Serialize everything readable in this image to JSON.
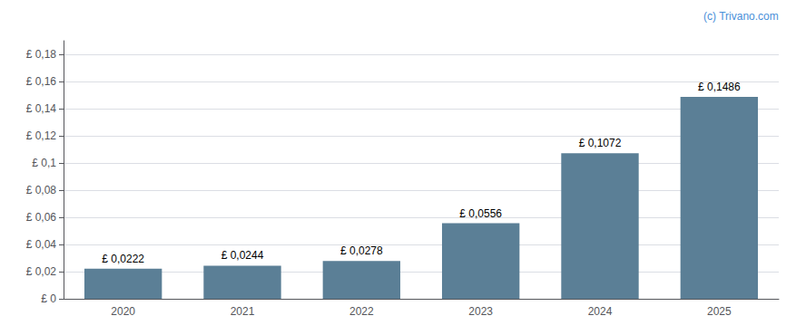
{
  "chart_data": {
    "type": "bar",
    "categories": [
      "2020",
      "2021",
      "2022",
      "2023",
      "2024",
      "2025"
    ],
    "values": [
      0.0222,
      0.0244,
      0.0278,
      0.0556,
      0.1072,
      0.1486
    ],
    "value_labels": [
      "£ 0,0222",
      "£ 0,0244",
      "£ 0,0278",
      "£ 0,0556",
      "£ 0,1072",
      "£ 0,1486"
    ],
    "data_labels": true,
    "color": "#5b7f96",
    "ylim": [
      0,
      0.19
    ],
    "yticks": [
      {
        "value": 0,
        "label": "£ 0"
      },
      {
        "value": 0.02,
        "label": "£ 0,02"
      },
      {
        "value": 0.04,
        "label": "£ 0,04"
      },
      {
        "value": 0.06,
        "label": "£ 0,06"
      },
      {
        "value": 0.08,
        "label": "£ 0,08"
      },
      {
        "value": 0.1,
        "label": "£ 0,1"
      },
      {
        "value": 0.12,
        "label": "£ 0,12"
      },
      {
        "value": 0.14,
        "label": "£ 0,14"
      },
      {
        "value": 0.16,
        "label": "£ 0,16"
      },
      {
        "value": 0.18,
        "label": "£ 0,18"
      }
    ],
    "grid": true,
    "annotations": [
      "(c) Trivano.com"
    ]
  }
}
